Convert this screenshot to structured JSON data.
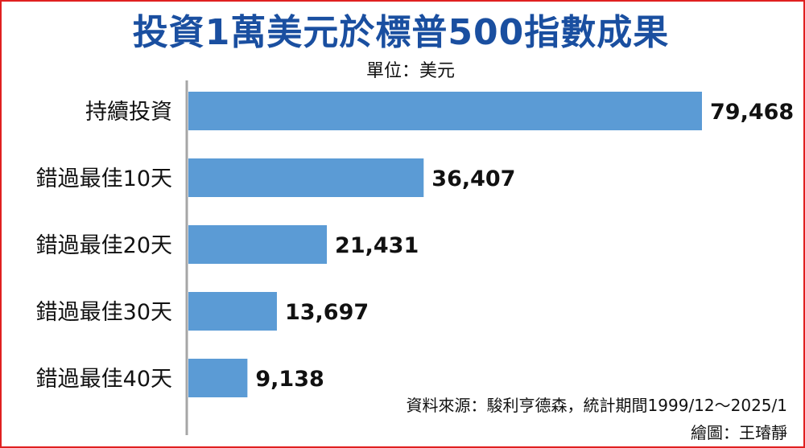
{
  "title": "投資1萬美元於標普500指數成果",
  "unit_label": "單位：美元",
  "source_note": "資料來源：駿利亨德森，統計期間1999/12～2025/1",
  "credit_note": "繪圖：王璿靜",
  "colors": {
    "bar": "#5b9bd5",
    "title": "#1a4fa0",
    "frame": "#e02020",
    "axis": "#a6a6a6"
  },
  "chart_data": {
    "type": "bar",
    "orientation": "horizontal",
    "title": "投資1萬美元於標普500指數成果",
    "xlabel": "",
    "ylabel": "",
    "unit": "美元",
    "categories": [
      "持續投資",
      "錯過最佳10天",
      "錯過最佳20天",
      "錯過最佳30天",
      "錯過最佳40天"
    ],
    "values": [
      79468,
      36407,
      21431,
      13697,
      9138
    ],
    "value_labels": [
      "79,468",
      "36,407",
      "21,431",
      "13,697",
      "9,138"
    ],
    "xlim": [
      0,
      79468
    ],
    "grid": false,
    "legend": "none"
  }
}
